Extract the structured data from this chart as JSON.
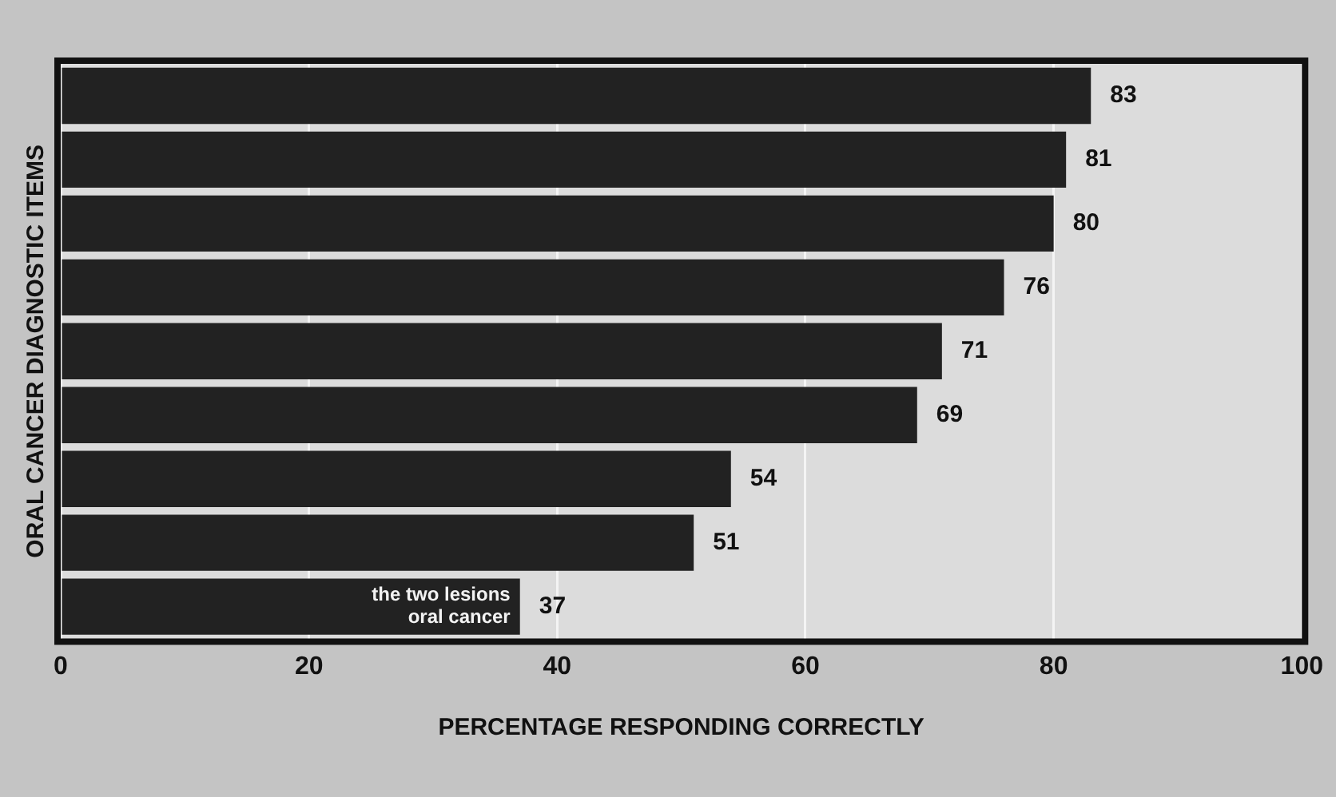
{
  "chart_data": {
    "type": "bar",
    "orientation": "horizontal",
    "xlabel": "PERCENTAGE RESPONDING CORRECTLY",
    "ylabel": "ORAL CANCER DIAGNOSTIC ITEMS",
    "categories": [
      null,
      null,
      null,
      null,
      null,
      null,
      null,
      null,
      null
    ],
    "values": [
      83,
      81,
      80,
      76,
      71,
      69,
      54,
      51,
      37
    ],
    "color": "#222222",
    "xlim": [
      0,
      100
    ],
    "xticks": [
      0,
      20,
      40,
      60,
      80,
      100
    ],
    "grid": "x",
    "data_labels": true,
    "annotations": [
      "the two lesions",
      "oral cancer"
    ]
  }
}
